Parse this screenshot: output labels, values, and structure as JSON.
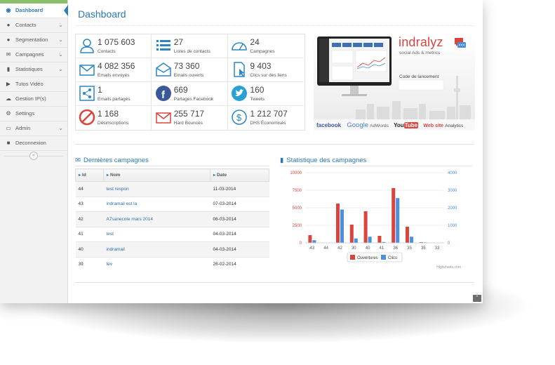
{
  "sidebar": {
    "items": [
      {
        "label": "Dashboard",
        "icon": "dashboard-icon",
        "glyph": "◉",
        "active": true,
        "chevron": ""
      },
      {
        "label": "Contacts",
        "icon": "user-icon",
        "glyph": "●",
        "active": false,
        "chevron": "⌄"
      },
      {
        "label": "Segmentation",
        "icon": "users-icon",
        "glyph": "●",
        "active": false,
        "chevron": "⌄"
      },
      {
        "label": "Campagnes",
        "icon": "envelope-icon",
        "glyph": "✉",
        "active": false,
        "chevron": "⌄"
      },
      {
        "label": "Statistiques",
        "icon": "bar-chart-icon",
        "glyph": "▮",
        "active": false,
        "chevron": "⌄"
      },
      {
        "label": "Tutos Vidéo",
        "icon": "video-icon",
        "glyph": "▶",
        "active": false,
        "chevron": ""
      },
      {
        "label": "Gestion IP(s)",
        "icon": "cloud-icon",
        "glyph": "☁",
        "active": false,
        "chevron": ""
      },
      {
        "label": "Settings",
        "icon": "gear-icon",
        "glyph": "⚙",
        "active": false,
        "chevron": ""
      },
      {
        "label": "Admin",
        "icon": "monitor-icon",
        "glyph": "▭",
        "active": false,
        "chevron": "⌄"
      },
      {
        "label": "Deconnexion",
        "icon": "lock-icon",
        "glyph": "■",
        "active": false,
        "chevron": ""
      }
    ],
    "collapse": "«"
  },
  "page": {
    "title": "Dashboard"
  },
  "stats": [
    {
      "value": "1 075 603",
      "label": "Contacts",
      "icon": "user-outline-icon"
    },
    {
      "value": "27",
      "label": "Listes de contacts",
      "icon": "list-icon"
    },
    {
      "value": "24",
      "label": "Campagnes",
      "icon": "gauge-icon"
    },
    {
      "value": "4 082 356",
      "label": "Emails envoyés",
      "icon": "envelope-outline-icon"
    },
    {
      "value": "73 360",
      "label": "Emails ouverts",
      "icon": "envelope-open-icon"
    },
    {
      "value": "9 403",
      "label": "Clics sur des liens",
      "icon": "document-cursor-icon"
    },
    {
      "value": "1",
      "label": "Emails partagés",
      "icon": "share-icon"
    },
    {
      "value": "669",
      "label": "Partages Facebook",
      "icon": "facebook-icon"
    },
    {
      "value": "160",
      "label": "Tweets",
      "icon": "twitter-icon"
    },
    {
      "value": "1 168",
      "label": "Désinscriptions",
      "icon": "ban-icon"
    },
    {
      "value": "255 717",
      "label": "Hard Bounces",
      "icon": "envelope-red-icon"
    },
    {
      "value": "1 212 707",
      "label": "DHS Économisés",
      "icon": "dollar-icon"
    }
  ],
  "banner": {
    "brand": "indralyz",
    "tagline": "social Ads & metrics",
    "launch_label": "Code de lancement",
    "partners": [
      "facebook",
      "Google",
      "AdWords",
      "You",
      "Tube",
      "Web site",
      "Analytics"
    ]
  },
  "campaigns": {
    "title": "Dernières campagnes",
    "headers": [
      "Id",
      "Nom",
      "Date"
    ],
    "rows": [
      {
        "id": "44",
        "name": "test respon",
        "date": "11-03-2014"
      },
      {
        "id": "43",
        "name": "indramail est la",
        "date": "07-03-2014"
      },
      {
        "id": "42",
        "name": "A7sanecole mars 2014",
        "date": "06-03-2014"
      },
      {
        "id": "41",
        "name": "test",
        "date": "04-03-2014"
      },
      {
        "id": "40",
        "name": "indramail",
        "date": "04-03-2014"
      },
      {
        "id": "39",
        "name": "fev",
        "date": "26-02-2014"
      }
    ]
  },
  "stats_chart": {
    "title": "Statistique des campagnes",
    "credit": "Highcharts.com"
  },
  "chart_data": {
    "type": "bar",
    "title": "Statistique des campagnes",
    "categories": [
      "43",
      "44",
      "42",
      "30",
      "40",
      "41",
      "36",
      "35",
      "35",
      "33"
    ],
    "series": [
      {
        "name": "Ouvertures",
        "color": "#d9453d",
        "values": [
          1100,
          0,
          5600,
          2600,
          4500,
          1000,
          7800,
          2300,
          100,
          0
        ]
      },
      {
        "name": "Clics",
        "color": "#4a8fe0",
        "values": [
          150,
          0,
          1900,
          250,
          350,
          50,
          2550,
          350,
          25,
          0
        ]
      }
    ],
    "ylim_left": [
      0,
      10000
    ],
    "yticks_left": [
      "0",
      "2500",
      "5000",
      "7500",
      "10000"
    ],
    "ylim_right": [
      0,
      4000
    ],
    "yticks_right": [
      "0",
      "1000",
      "2000",
      "3000",
      "4000"
    ],
    "legend": "bottom-center",
    "grid": true
  },
  "footer": {
    "scroll_top": "⌃"
  }
}
